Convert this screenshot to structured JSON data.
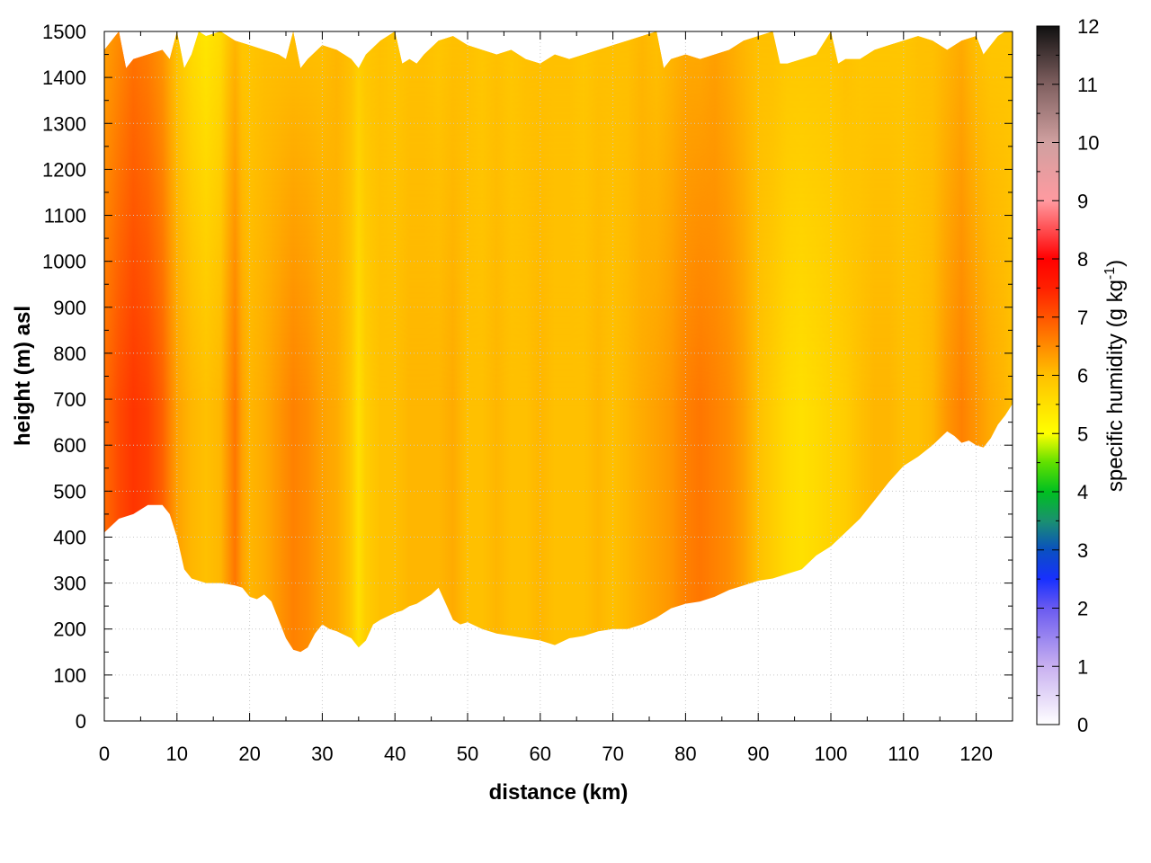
{
  "chart_data": {
    "type": "heatmap",
    "subtype": "filled cross-section (distance vs height)",
    "xlabel": "distance (km)",
    "ylabel": "height (m) asl",
    "xlim": [
      0,
      125
    ],
    "ylim": [
      0,
      1500
    ],
    "x_ticks": [
      0,
      10,
      20,
      30,
      40,
      50,
      60,
      70,
      80,
      90,
      100,
      110,
      120
    ],
    "y_ticks": [
      0,
      100,
      200,
      300,
      400,
      500,
      600,
      700,
      800,
      900,
      1000,
      1100,
      1200,
      1300,
      1400,
      1500
    ],
    "grid": true,
    "colorbar": {
      "label_prefix": "specific humidity (g kg",
      "label_exp": "-1",
      "label_suffix": ")",
      "range": [
        0,
        12
      ],
      "ticks": [
        0,
        1,
        2,
        3,
        4,
        5,
        6,
        7,
        8,
        9,
        10,
        11,
        12
      ],
      "colormap": [
        {
          "v": 0,
          "color": "#ffffff"
        },
        {
          "v": 1,
          "color": "#c8b0f0"
        },
        {
          "v": 2,
          "color": "#6a5af0"
        },
        {
          "v": 2.5,
          "color": "#1830ff"
        },
        {
          "v": 3,
          "color": "#0a50c0"
        },
        {
          "v": 3.5,
          "color": "#1a9070"
        },
        {
          "v": 4,
          "color": "#00c020"
        },
        {
          "v": 4.5,
          "color": "#60e000"
        },
        {
          "v": 5,
          "color": "#ffff00"
        },
        {
          "v": 5.5,
          "color": "#ffe000"
        },
        {
          "v": 6,
          "color": "#ffc000"
        },
        {
          "v": 6.5,
          "color": "#ff8c00"
        },
        {
          "v": 7,
          "color": "#ff5500"
        },
        {
          "v": 7.5,
          "color": "#ff2000"
        },
        {
          "v": 8,
          "color": "#ff0000"
        },
        {
          "v": 9,
          "color": "#ff9aa0"
        },
        {
          "v": 10,
          "color": "#d0a0a0"
        },
        {
          "v": 11,
          "color": "#806060"
        },
        {
          "v": 12,
          "color": "#101010"
        }
      ]
    },
    "lower_boundary": {
      "distance_km": [
        0,
        2,
        4,
        6,
        8,
        9,
        10,
        11,
        12,
        14,
        16,
        18,
        19,
        20,
        21,
        22,
        23,
        24,
        25,
        26,
        27,
        28,
        29,
        30,
        31,
        32,
        34,
        35,
        36,
        37,
        38,
        40,
        41,
        42,
        43,
        44,
        45,
        46,
        47,
        48,
        49,
        50,
        52,
        54,
        56,
        58,
        60,
        62,
        64,
        66,
        68,
        70,
        72,
        74,
        76,
        78,
        80,
        82,
        84,
        86,
        88,
        90,
        92,
        94,
        96,
        98,
        100,
        102,
        104,
        106,
        108,
        110,
        112,
        114,
        115,
        116,
        117,
        118,
        119,
        120,
        121,
        122,
        123,
        124,
        125
      ],
      "height_m": [
        410,
        440,
        450,
        470,
        470,
        450,
        400,
        330,
        310,
        300,
        300,
        295,
        290,
        270,
        265,
        275,
        260,
        220,
        180,
        155,
        150,
        160,
        190,
        210,
        200,
        195,
        180,
        160,
        175,
        210,
        220,
        235,
        240,
        250,
        255,
        265,
        275,
        290,
        255,
        220,
        210,
        215,
        200,
        190,
        185,
        180,
        175,
        165,
        180,
        185,
        195,
        200,
        200,
        210,
        225,
        245,
        255,
        260,
        270,
        285,
        295,
        305,
        310,
        320,
        330,
        360,
        380,
        410,
        440,
        480,
        520,
        555,
        575,
        600,
        615,
        630,
        620,
        605,
        610,
        600,
        595,
        615,
        645,
        665,
        690
      ]
    },
    "upper_boundary": {
      "distance_km": [
        0,
        1,
        2,
        3,
        4,
        6,
        8,
        9,
        10,
        11,
        12,
        13,
        14,
        16,
        18,
        20,
        22,
        24,
        25,
        26,
        27,
        28,
        30,
        32,
        34,
        35,
        36,
        38,
        40,
        41,
        42,
        43,
        44,
        46,
        48,
        50,
        52,
        54,
        56,
        58,
        60,
        62,
        64,
        66,
        68,
        70,
        72,
        74,
        76,
        77,
        78,
        80,
        82,
        84,
        86,
        88,
        90,
        92,
        93,
        94,
        96,
        98,
        100,
        101,
        102,
        104,
        106,
        108,
        110,
        112,
        114,
        116,
        118,
        120,
        121,
        122,
        123,
        124,
        125
      ],
      "height_m": [
        1460,
        1480,
        1500,
        1420,
        1440,
        1450,
        1460,
        1440,
        1500,
        1420,
        1450,
        1500,
        1490,
        1500,
        1480,
        1470,
        1460,
        1450,
        1440,
        1500,
        1420,
        1440,
        1470,
        1460,
        1440,
        1420,
        1450,
        1480,
        1500,
        1430,
        1440,
        1430,
        1450,
        1480,
        1490,
        1470,
        1460,
        1450,
        1460,
        1440,
        1430,
        1450,
        1440,
        1450,
        1460,
        1470,
        1480,
        1490,
        1500,
        1420,
        1440,
        1450,
        1440,
        1450,
        1460,
        1480,
        1490,
        1500,
        1430,
        1430,
        1440,
        1450,
        1500,
        1430,
        1440,
        1440,
        1460,
        1470,
        1480,
        1490,
        1480,
        1460,
        1480,
        1490,
        1450,
        1470,
        1490,
        1500,
        1500
      ]
    },
    "specific_humidity_profile": {
      "distance_km": [
        0,
        2,
        4,
        6,
        8,
        10,
        12,
        14,
        16,
        17,
        18,
        19,
        20,
        22,
        24,
        26,
        28,
        30,
        32,
        34,
        35,
        36,
        38,
        40,
        42,
        44,
        46,
        48,
        50,
        52,
        54,
        56,
        58,
        60,
        62,
        64,
        66,
        68,
        70,
        72,
        74,
        76,
        78,
        80,
        82,
        84,
        86,
        88,
        90,
        92,
        94,
        96,
        98,
        100,
        102,
        104,
        106,
        108,
        110,
        112,
        114,
        116,
        118,
        120,
        122,
        124,
        125
      ],
      "low_level_g_per_kg": [
        6.8,
        7.1,
        7.3,
        7.2,
        6.9,
        6.3,
        6.1,
        6.0,
        6.1,
        6.4,
        6.7,
        6.3,
        6.1,
        6.2,
        6.4,
        6.6,
        6.5,
        6.3,
        6.2,
        5.9,
        5.5,
        5.8,
        6.0,
        6.0,
        6.1,
        6.1,
        6.1,
        6.2,
        6.0,
        6.0,
        6.1,
        6.0,
        6.0,
        6.1,
        6.0,
        6.0,
        6.0,
        6.1,
        6.0,
        6.1,
        6.2,
        6.3,
        6.4,
        6.6,
        6.7,
        6.6,
        6.5,
        6.3,
        6.0,
        5.8,
        5.6,
        5.5,
        5.6,
        5.7,
        5.8,
        6.0,
        6.1,
        6.1,
        6.0,
        6.0,
        6.1,
        6.4,
        6.6,
        6.4,
        6.2,
        6.1,
        6.0
      ],
      "upper_level_g_per_kg": [
        6.3,
        6.5,
        6.7,
        6.6,
        6.4,
        5.9,
        5.6,
        5.4,
        5.6,
        5.9,
        6.1,
        5.9,
        5.9,
        6.0,
        6.0,
        6.0,
        6.0,
        6.0,
        6.1,
        6.0,
        5.8,
        5.9,
        6.0,
        5.9,
        6.0,
        6.0,
        5.9,
        6.0,
        6.0,
        5.9,
        6.0,
        5.9,
        6.0,
        6.0,
        6.0,
        6.0,
        5.9,
        6.0,
        6.0,
        6.0,
        6.1,
        6.0,
        6.1,
        6.2,
        6.2,
        6.3,
        6.2,
        6.1,
        6.0,
        6.0,
        5.9,
        5.9,
        5.9,
        5.9,
        6.0,
        5.9,
        5.9,
        5.9,
        5.9,
        6.0,
        6.0,
        6.1,
        6.2,
        6.0,
        5.9,
        5.9,
        5.9
      ]
    }
  }
}
